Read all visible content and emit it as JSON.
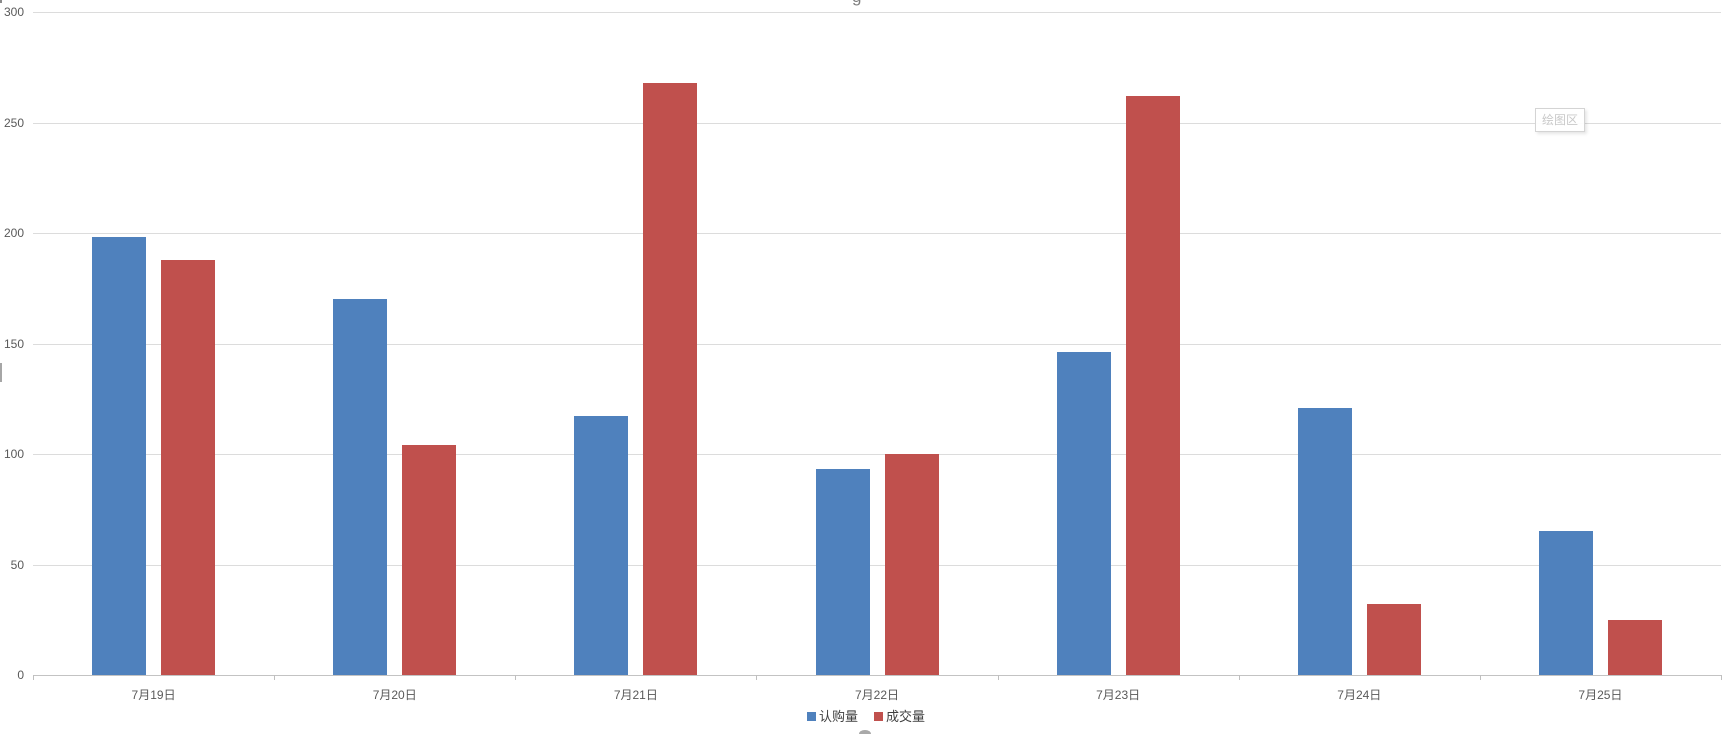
{
  "chart_data": {
    "type": "bar",
    "title_fragment": "g",
    "categories": [
      "7月19日",
      "7月20日",
      "7月21日",
      "7月22日",
      "7月23日",
      "7月24日",
      "7月25日"
    ],
    "series": [
      {
        "name": "认购量",
        "color": "#4F81BD",
        "values": [
          198,
          170,
          117,
          93,
          146,
          121,
          65
        ]
      },
      {
        "name": "成交量",
        "color": "#C0504D",
        "values": [
          188,
          104,
          268,
          100,
          262,
          32,
          25
        ]
      }
    ],
    "ylabel": "",
    "xlabel": "",
    "ylim": [
      0,
      300
    ],
    "ytick_step": 50,
    "yticks": [
      "0",
      "50",
      "100",
      "150",
      "200",
      "250",
      "300"
    ],
    "grid": "horizontal",
    "legend_position": "bottom"
  },
  "overlay": {
    "plot_area_tooltip": "绘图区"
  },
  "colors": {
    "series1": "#4F81BD",
    "series2": "#C0504D",
    "gridline": "#DCDCDC",
    "axis_line": "#C3C3C3",
    "tick_text": "#595959",
    "legend_text": "#404040",
    "tooltip_text": "#C9C9C9",
    "tooltip_border": "#D4D4D4"
  }
}
